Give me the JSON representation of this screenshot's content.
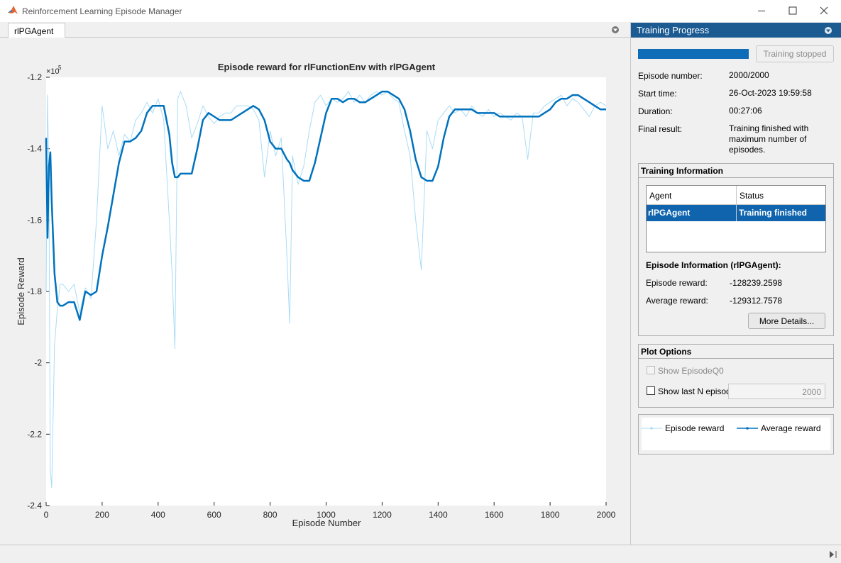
{
  "window": {
    "title": "Reinforcement Learning Episode Manager"
  },
  "tab": "rlPGAgent",
  "chart_data": {
    "type": "line",
    "title": "Episode reward for rlFunctionEnv with rlPGAgent",
    "xlabel": "Episode Number",
    "ylabel": "Episode Reward",
    "y_multiplier": "×10",
    "y_exponent": "5",
    "x": [
      0,
      5,
      10,
      15,
      20,
      30,
      40,
      50,
      60,
      80,
      100,
      120,
      140,
      160,
      180,
      200,
      220,
      240,
      260,
      280,
      300,
      320,
      340,
      360,
      380,
      400,
      420,
      440,
      450,
      460,
      470,
      480,
      500,
      520,
      540,
      560,
      580,
      600,
      620,
      640,
      660,
      680,
      700,
      720,
      740,
      760,
      780,
      800,
      820,
      840,
      860,
      870,
      880,
      900,
      920,
      940,
      960,
      980,
      1000,
      1020,
      1040,
      1060,
      1080,
      1100,
      1120,
      1140,
      1160,
      1180,
      1200,
      1220,
      1240,
      1260,
      1280,
      1300,
      1320,
      1340,
      1360,
      1380,
      1400,
      1420,
      1440,
      1460,
      1480,
      1500,
      1520,
      1540,
      1560,
      1580,
      1600,
      1620,
      1640,
      1660,
      1680,
      1700,
      1720,
      1740,
      1760,
      1780,
      1800,
      1820,
      1840,
      1860,
      1880,
      1900,
      1920,
      1940,
      1960,
      1980,
      2000
    ],
    "series": [
      {
        "name": "Episode reward",
        "color": "#a9dcf6",
        "values": [
          -1.8,
          -1.25,
          -1.5,
          -2.3,
          -2.35,
          -1.95,
          -1.85,
          -1.78,
          -1.78,
          -1.8,
          -1.78,
          -1.86,
          -1.79,
          -1.82,
          -1.6,
          -1.28,
          -1.4,
          -1.35,
          -1.42,
          -1.36,
          -1.38,
          -1.32,
          -1.3,
          -1.27,
          -1.3,
          -1.26,
          -1.32,
          -1.6,
          -1.75,
          -1.96,
          -1.26,
          -1.24,
          -1.28,
          -1.37,
          -1.33,
          -1.28,
          -1.31,
          -1.33,
          -1.31,
          -1.3,
          -1.3,
          -1.28,
          -1.28,
          -1.28,
          -1.29,
          -1.32,
          -1.48,
          -1.35,
          -1.42,
          -1.37,
          -1.7,
          -1.89,
          -1.42,
          -1.5,
          -1.45,
          -1.35,
          -1.27,
          -1.25,
          -1.28,
          -1.26,
          -1.27,
          -1.26,
          -1.24,
          -1.27,
          -1.25,
          -1.27,
          -1.25,
          -1.24,
          -1.25,
          -1.24,
          -1.26,
          -1.27,
          -1.35,
          -1.42,
          -1.6,
          -1.74,
          -1.35,
          -1.4,
          -1.32,
          -1.3,
          -1.28,
          -1.3,
          -1.29,
          -1.31,
          -1.28,
          -1.3,
          -1.31,
          -1.29,
          -1.31,
          -1.3,
          -1.31,
          -1.32,
          -1.3,
          -1.31,
          -1.43,
          -1.3,
          -1.3,
          -1.28,
          -1.27,
          -1.26,
          -1.25,
          -1.28,
          -1.26,
          -1.27,
          -1.29,
          -1.31,
          -1.28,
          -1.27,
          -1.28
        ]
      },
      {
        "name": "Average reward",
        "color": "#0072bd",
        "values": [
          -1.37,
          -1.65,
          -1.45,
          -1.41,
          -1.55,
          -1.75,
          -1.83,
          -1.84,
          -1.84,
          -1.83,
          -1.83,
          -1.88,
          -1.8,
          -1.81,
          -1.8,
          -1.7,
          -1.62,
          -1.53,
          -1.44,
          -1.38,
          -1.38,
          -1.37,
          -1.35,
          -1.3,
          -1.28,
          -1.28,
          -1.28,
          -1.36,
          -1.44,
          -1.48,
          -1.48,
          -1.47,
          -1.47,
          -1.47,
          -1.4,
          -1.32,
          -1.3,
          -1.31,
          -1.32,
          -1.32,
          -1.32,
          -1.31,
          -1.3,
          -1.29,
          -1.28,
          -1.29,
          -1.32,
          -1.38,
          -1.4,
          -1.4,
          -1.43,
          -1.44,
          -1.46,
          -1.48,
          -1.49,
          -1.49,
          -1.44,
          -1.37,
          -1.3,
          -1.26,
          -1.26,
          -1.27,
          -1.26,
          -1.26,
          -1.27,
          -1.27,
          -1.26,
          -1.25,
          -1.24,
          -1.24,
          -1.25,
          -1.26,
          -1.29,
          -1.35,
          -1.43,
          -1.48,
          -1.49,
          -1.49,
          -1.45,
          -1.37,
          -1.31,
          -1.29,
          -1.29,
          -1.29,
          -1.29,
          -1.3,
          -1.3,
          -1.3,
          -1.3,
          -1.31,
          -1.31,
          -1.31,
          -1.31,
          -1.31,
          -1.31,
          -1.31,
          -1.31,
          -1.3,
          -1.29,
          -1.27,
          -1.26,
          -1.26,
          -1.25,
          -1.25,
          -1.26,
          -1.27,
          -1.28,
          -1.29,
          -1.29
        ]
      }
    ],
    "xlim": [
      0,
      2000
    ],
    "xticks": [
      0,
      200,
      400,
      600,
      800,
      1000,
      1200,
      1400,
      1600,
      1800,
      2000
    ],
    "ylim": [
      -2.4,
      -1.2
    ],
    "yticks": [
      -2.4,
      -2.2,
      -2,
      -1.8,
      -1.6,
      -1.4,
      -1.2
    ]
  },
  "progress": {
    "header": "Training Progress",
    "button": "Training stopped",
    "fields": [
      {
        "label": "Episode number:",
        "value": "2000/2000"
      },
      {
        "label": "Start time:",
        "value": "26-Oct-2023 19:59:58"
      },
      {
        "label": "Duration:",
        "value": "00:27:06"
      },
      {
        "label": "Final result:",
        "value": "Training finished with maximum number of episodes."
      }
    ]
  },
  "training_info": {
    "header": "Training Information",
    "columns": [
      "Agent",
      "Status"
    ],
    "rows": [
      [
        "rlPGAgent",
        "Training finished"
      ]
    ],
    "episode_title": "Episode Information (rlPGAgent):",
    "fields": [
      {
        "label": "Episode reward:",
        "value": "-128239.2598"
      },
      {
        "label": "Average reward:",
        "value": "-129312.7578"
      }
    ],
    "button": "More Details..."
  },
  "plot_options": {
    "header": "Plot Options",
    "options": [
      {
        "label": "Show EpisodeQ0"
      },
      {
        "label": "Show last N episodes",
        "value": 2000
      }
    ]
  }
}
